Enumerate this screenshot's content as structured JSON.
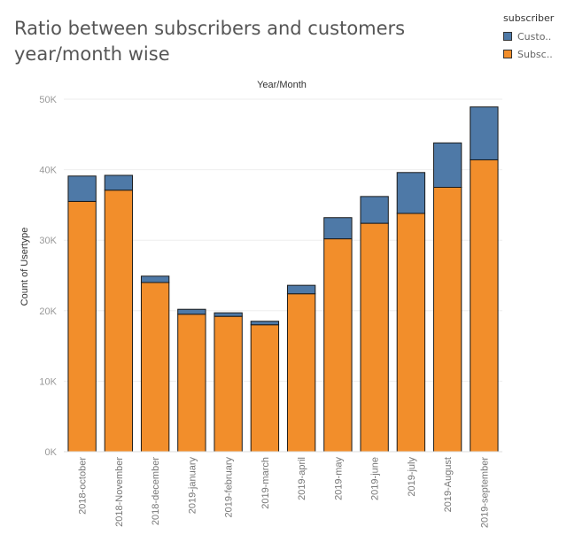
{
  "title": "Ratio between subscribers and customers year/month wise",
  "legend": {
    "title": "subscriber",
    "items": [
      {
        "label": "Custo..",
        "color": "#4e79a7"
      },
      {
        "label": "Subsc..",
        "color": "#f28e2b"
      }
    ]
  },
  "chart_data": {
    "type": "bar",
    "stacked": true,
    "title": "Ratio between subscribers and customers year/month wise",
    "header": "Year/Month",
    "xlabel": "",
    "ylabel": "Count of Usertype",
    "ylim": [
      0,
      50000
    ],
    "yticks": [
      0,
      10000,
      20000,
      30000,
      40000,
      50000
    ],
    "ytick_labels": [
      "0K",
      "10K",
      "20K",
      "30K",
      "40K",
      "50K"
    ],
    "grid": true,
    "legend_position": "top-right",
    "categories": [
      "2018-october",
      "2018-November",
      "2018-december",
      "2019-january",
      "2019-february",
      "2019-march",
      "2019-april",
      "2019-may",
      "2019-june",
      "2019-july",
      "2019-August",
      "2019-september"
    ],
    "series": [
      {
        "name": "Subsc..",
        "color": "#f28e2b",
        "values": [
          35500,
          37100,
          24000,
          19500,
          19200,
          18000,
          22400,
          30200,
          32400,
          33800,
          37500,
          41400
        ]
      },
      {
        "name": "Custo..",
        "color": "#4e79a7",
        "values": [
          3600,
          2100,
          900,
          700,
          500,
          500,
          1200,
          3000,
          3800,
          5800,
          6300,
          7500
        ]
      }
    ]
  }
}
